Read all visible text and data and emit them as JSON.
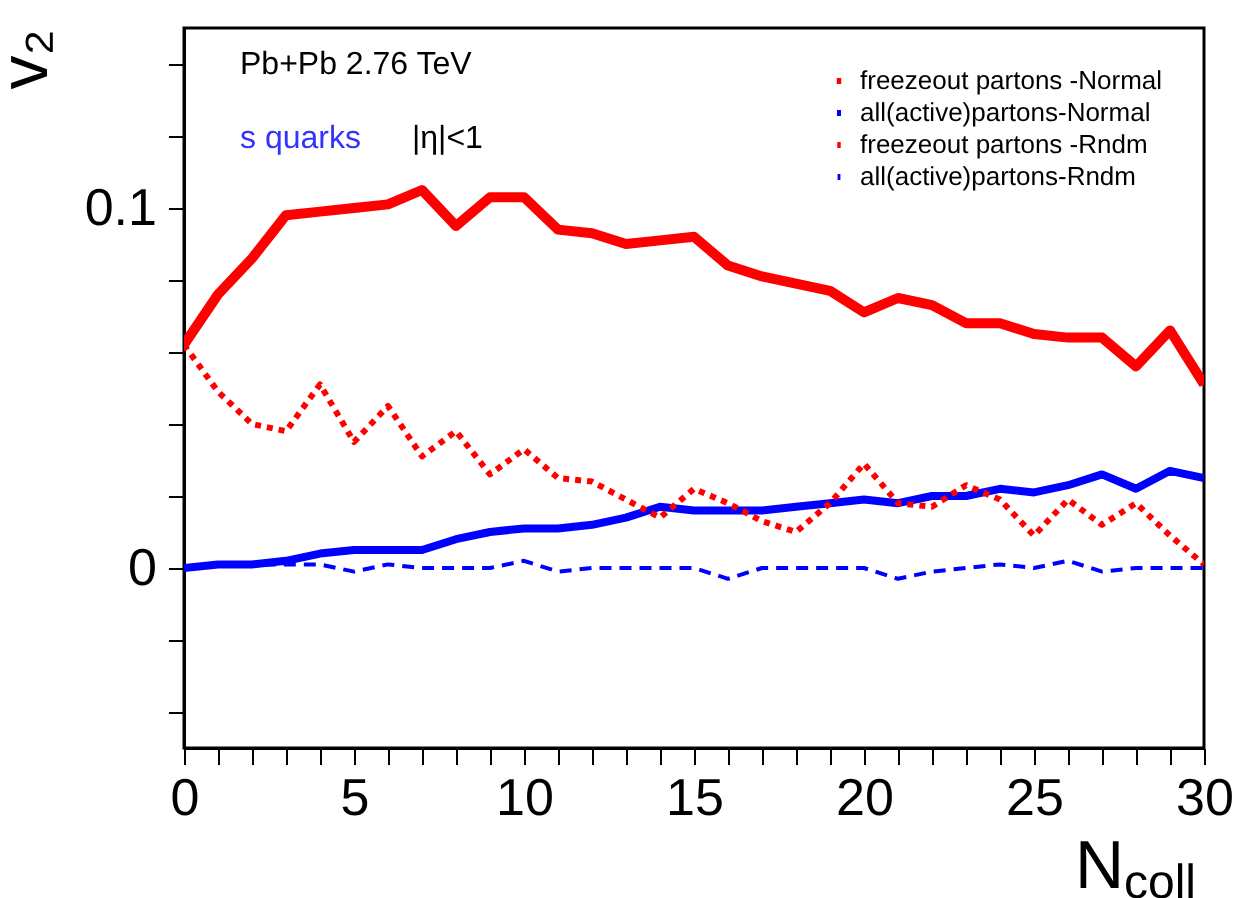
{
  "chart_data": {
    "type": "line",
    "xlabel": "N$_{coll}$",
    "ylabel": "v₂",
    "x": [
      0,
      1,
      2,
      3,
      4,
      5,
      6,
      7,
      8,
      9,
      10,
      11,
      12,
      13,
      14,
      15,
      16,
      17,
      18,
      19,
      20,
      21,
      22,
      23,
      24,
      25,
      26,
      27,
      28,
      29,
      30
    ],
    "xlim": [
      0,
      30
    ],
    "ylim": [
      -0.05,
      0.15
    ],
    "xticks": [
      0,
      {
        "value": 1,
        "label": null
      },
      {
        "value": 2,
        "label": null
      },
      {
        "value": 3,
        "label": null
      },
      {
        "value": 4,
        "label": null
      },
      5,
      {
        "value": 6,
        "label": null
      },
      {
        "value": 7,
        "label": null
      },
      {
        "value": 8,
        "label": null
      },
      {
        "value": 9,
        "label": null
      },
      10,
      {
        "value": 11,
        "label": null
      },
      {
        "value": 12,
        "label": null
      },
      {
        "value": 13,
        "label": null
      },
      {
        "value": 14,
        "label": null
      },
      15,
      {
        "value": 16,
        "label": null
      },
      {
        "value": 17,
        "label": null
      },
      {
        "value": 18,
        "label": null
      },
      {
        "value": 19,
        "label": null
      },
      20,
      {
        "value": 21,
        "label": null
      },
      {
        "value": 22,
        "label": null
      },
      {
        "value": 23,
        "label": null
      },
      {
        "value": 24,
        "label": null
      },
      25,
      {
        "value": 26,
        "label": null
      },
      {
        "value": 27,
        "label": null
      },
      {
        "value": 28,
        "label": null
      },
      {
        "value": 29,
        "label": null
      },
      30
    ],
    "yticks": [
      {
        "value": -0.04,
        "label": null
      },
      {
        "value": -0.02,
        "label": null
      },
      0,
      {
        "value": 0.02,
        "label": null
      },
      {
        "value": 0.04,
        "label": null
      },
      {
        "value": 0.06,
        "label": null
      },
      {
        "value": 0.08,
        "label": null
      },
      0.1,
      {
        "value": 0.12,
        "label": null
      },
      {
        "value": 0.14,
        "label": null
      }
    ],
    "grid": false,
    "legend": "top right",
    "marker": "none",
    "annotations": [
      "Pb+Pb   2.76 TeV",
      "s quarks",
      "|η|<1"
    ],
    "series": [
      {
        "name": "freezeout partons -Normal",
        "color": "#ff0000",
        "line_style": "solid",
        "values": [
          0.062,
          0.076,
          0.086,
          0.098,
          0.099,
          0.1,
          0.101,
          0.105,
          0.095,
          0.103,
          0.103,
          0.094,
          0.093,
          0.09,
          0.091,
          0.092,
          0.084,
          0.081,
          0.079,
          0.077,
          0.071,
          0.075,
          0.073,
          0.068,
          0.068,
          0.065,
          0.064,
          0.064,
          0.056,
          0.066,
          0.051
        ]
      },
      {
        "name": "all(active)partons-Normal",
        "color": "#0000ff",
        "line_style": "solid",
        "values": [
          0,
          0.001,
          0.001,
          0.002,
          0.004,
          0.005,
          0.005,
          0.005,
          0.008,
          0.01,
          0.011,
          0.011,
          0.012,
          0.014,
          0.017,
          0.016,
          0.016,
          0.016,
          0.017,
          0.018,
          0.019,
          0.018,
          0.02,
          0.02,
          0.022,
          0.021,
          0.023,
          0.026,
          0.022,
          0.027,
          0.025
        ]
      },
      {
        "name": "freezeout partons -Rndm",
        "color": "#ff0000",
        "line_style": "dotted",
        "values": [
          0.062,
          0.049,
          0.04,
          0.038,
          0.051,
          0.035,
          0.045,
          0.031,
          0.038,
          0.026,
          0.033,
          0.025,
          0.024,
          0.019,
          0.014,
          0.022,
          0.018,
          0.013,
          0.01,
          0.018,
          0.029,
          0.018,
          0.017,
          0.023,
          0.019,
          0.009,
          0.019,
          0.012,
          0.018,
          0.009,
          0.001
        ]
      },
      {
        "name": "all(active)partons-Rndm",
        "color": "#0000ff",
        "line_style": "dashed",
        "values": [
          0,
          0.001,
          0.001,
          0.001,
          0.001,
          -0.001,
          0.001,
          0,
          0,
          0,
          0.002,
          -0.001,
          0,
          0,
          0,
          0,
          -0.003,
          0,
          0,
          0,
          0,
          -0.003,
          -0.001,
          0,
          0.001,
          0,
          0.002,
          -0.001,
          0,
          0,
          0
        ]
      }
    ]
  }
}
